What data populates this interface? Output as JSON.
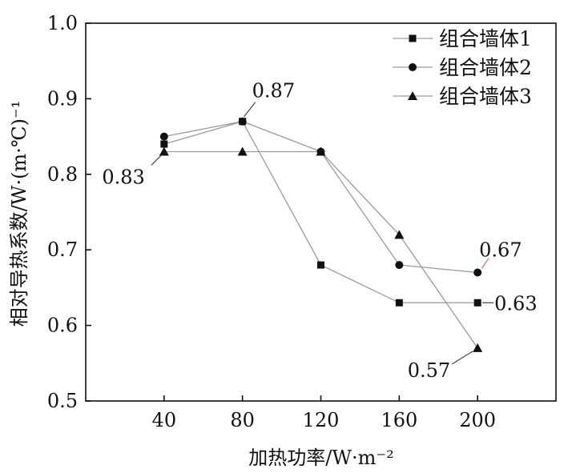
{
  "chart_data": {
    "type": "line",
    "title": "",
    "xlabel": "加热功率/W·m⁻²",
    "ylabel": "相对导热系数/W·(m·℃)⁻¹",
    "x": [
      40,
      80,
      120,
      160,
      200
    ],
    "xticks": [
      40,
      80,
      120,
      160,
      200
    ],
    "xlim": [
      0,
      240
    ],
    "ylim": [
      0.5,
      1.0
    ],
    "yticks": [
      "0.5",
      "0.6",
      "0.7",
      "0.8",
      "0.9",
      "1.0"
    ],
    "grid": false,
    "legend_position": "top-right",
    "series": [
      {
        "name": "组合墙体1",
        "marker": "square",
        "values": [
          0.84,
          0.87,
          0.68,
          0.63,
          0.63
        ]
      },
      {
        "name": "组合墙体2",
        "marker": "circle",
        "values": [
          0.85,
          0.87,
          0.83,
          0.68,
          0.67
        ]
      },
      {
        "name": "组合墙体3",
        "marker": "triangle",
        "values": [
          0.83,
          0.83,
          0.83,
          0.72,
          0.57
        ]
      }
    ],
    "annotations": [
      {
        "text": "0.83",
        "x": 40,
        "y": 0.83,
        "placement": "below-left"
      },
      {
        "text": "0.87",
        "x": 80,
        "y": 0.87,
        "placement": "above-right"
      },
      {
        "text": "0.67",
        "x": 200,
        "y": 0.67,
        "placement": "above-right"
      },
      {
        "text": "0.63",
        "x": 200,
        "y": 0.63,
        "placement": "right"
      },
      {
        "text": "0.57",
        "x": 200,
        "y": 0.57,
        "placement": "below-left"
      }
    ],
    "colors": {
      "series_line": "#9a9a9a",
      "marker": "#111111",
      "axis": "#111111",
      "leader_default": "#444444",
      "leader_067": "#e07050"
    }
  }
}
